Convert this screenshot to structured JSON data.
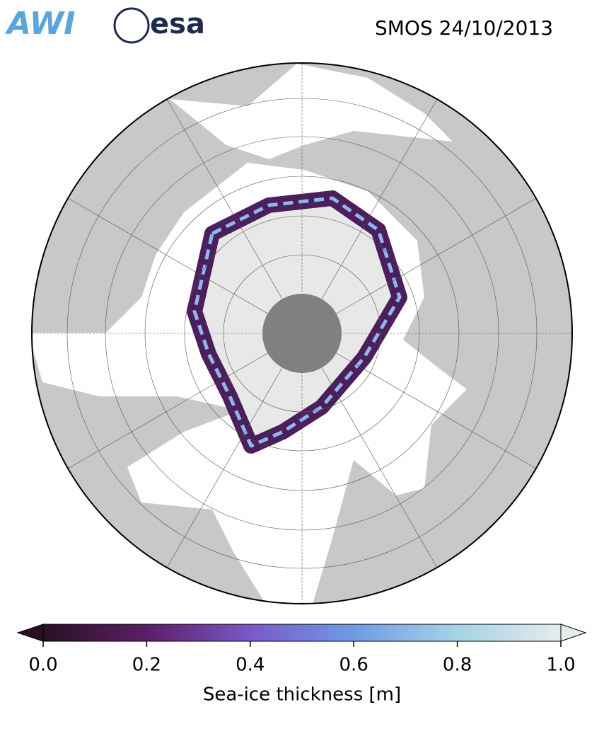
{
  "header": {
    "logos": [
      "AWI",
      "esa"
    ],
    "title": "SMOS 24/10/2013"
  },
  "colorbar": {
    "label": "Sea-ice thickness [m]",
    "lim": [
      0,
      1
    ],
    "ticks": [
      {
        "value": 0,
        "label": "0.0"
      },
      0.2,
      0.4,
      0.6,
      0.8,
      {
        "value": 1,
        "label": "1.0"
      }
    ],
    "colors": [
      "#2a0f24",
      "#5a1f66",
      "#7b58c8",
      "#6f9be6",
      "#a6d3e6",
      "#e4ecec"
    ]
  }
}
